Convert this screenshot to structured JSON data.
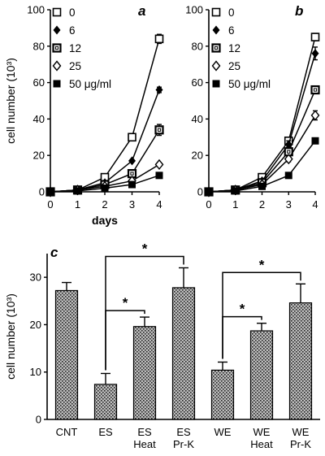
{
  "chart_data": [
    {
      "panel": "a",
      "type": "line",
      "ylabel": "cell number (10³)",
      "xlabel": "days",
      "x": [
        0,
        1,
        2,
        3,
        4
      ],
      "xticks": [
        "0",
        "1",
        "2",
        "3",
        "4"
      ],
      "yticks": [
        "0",
        "20",
        "40",
        "60",
        "80",
        "100"
      ],
      "xlim": [
        0,
        4
      ],
      "ylim": [
        0,
        100
      ],
      "series": [
        {
          "name": "0",
          "marker": "open-square",
          "values": [
            0,
            1,
            8,
            30,
            84
          ],
          "errors": [
            0,
            0,
            0,
            0,
            2.5
          ]
        },
        {
          "name": "6",
          "marker": "filled-diamond",
          "values": [
            0,
            1,
            5,
            17,
            56
          ],
          "errors": [
            0,
            0,
            0,
            0,
            1.5
          ]
        },
        {
          "name": "12",
          "marker": "double-square",
          "values": [
            0,
            1,
            4,
            10,
            34
          ],
          "errors": [
            0,
            0,
            0,
            1.5,
            3
          ]
        },
        {
          "name": "25",
          "marker": "open-diamond",
          "values": [
            0,
            1,
            3,
            6,
            15
          ],
          "errors": [
            0,
            0,
            0,
            0,
            0
          ]
        },
        {
          "name": "50 μg/ml",
          "marker": "filled-square",
          "values": [
            0,
            0.5,
            2,
            4,
            9
          ],
          "errors": [
            0,
            0,
            0,
            0,
            0
          ]
        }
      ]
    },
    {
      "panel": "b",
      "type": "line",
      "xlabel": "",
      "x": [
        0,
        1,
        2,
        3,
        4
      ],
      "xticks": [
        "0",
        "1",
        "2",
        "3",
        "4"
      ],
      "yticks": [
        "0",
        "20",
        "40",
        "60",
        "80",
        "100"
      ],
      "xlim": [
        0,
        4
      ],
      "ylim": [
        0,
        100
      ],
      "series": [
        {
          "name": "0",
          "marker": "open-square",
          "values": [
            0,
            1,
            8,
            28,
            85
          ],
          "errors": [
            0,
            0,
            0,
            0,
            2
          ]
        },
        {
          "name": "6",
          "marker": "filled-diamond",
          "values": [
            0,
            1,
            6,
            26,
            76
          ],
          "errors": [
            0,
            0,
            0,
            2,
            3.5
          ]
        },
        {
          "name": "12",
          "marker": "double-square",
          "values": [
            0,
            1,
            5,
            22,
            56
          ],
          "errors": [
            0,
            0,
            0,
            1.5,
            1.5
          ]
        },
        {
          "name": "25",
          "marker": "open-diamond",
          "values": [
            0,
            1,
            4,
            18,
            42
          ],
          "errors": [
            0,
            0,
            0,
            1.5,
            2.5
          ]
        },
        {
          "name": "50 μg/ml",
          "marker": "filled-square",
          "values": [
            0,
            0.5,
            3,
            9,
            28
          ],
          "errors": [
            0,
            0,
            0,
            0,
            0
          ]
        }
      ]
    },
    {
      "panel": "c",
      "type": "bar",
      "ylabel": "cell number (10³)",
      "categories": [
        "CNT",
        "ES",
        "ES Heat",
        "ES Pr-K",
        "WE",
        "WE Heat",
        "WE Pr-K"
      ],
      "category_lines": [
        [
          "CNT"
        ],
        [
          "ES"
        ],
        [
          "ES",
          "Heat"
        ],
        [
          "ES",
          "Pr-K"
        ],
        [
          "WE"
        ],
        [
          "WE",
          "Heat"
        ],
        [
          "WE",
          "Pr-K"
        ]
      ],
      "values": [
        27.2,
        7.4,
        19.6,
        27.8,
        10.4,
        18.7,
        24.6
      ],
      "errors": [
        1.7,
        2.3,
        2.0,
        4.2,
        1.7,
        1.6,
        4.0
      ],
      "yticks": [
        "0",
        "10",
        "20",
        "30"
      ],
      "ylim": [
        0,
        35
      ],
      "significance": [
        {
          "from": 1,
          "to": 2,
          "label": "*"
        },
        {
          "from": 1,
          "to": 3,
          "label": "*"
        },
        {
          "from": 4,
          "to": 5,
          "label": "*"
        },
        {
          "from": 4,
          "to": 6,
          "label": "*"
        }
      ]
    }
  ]
}
